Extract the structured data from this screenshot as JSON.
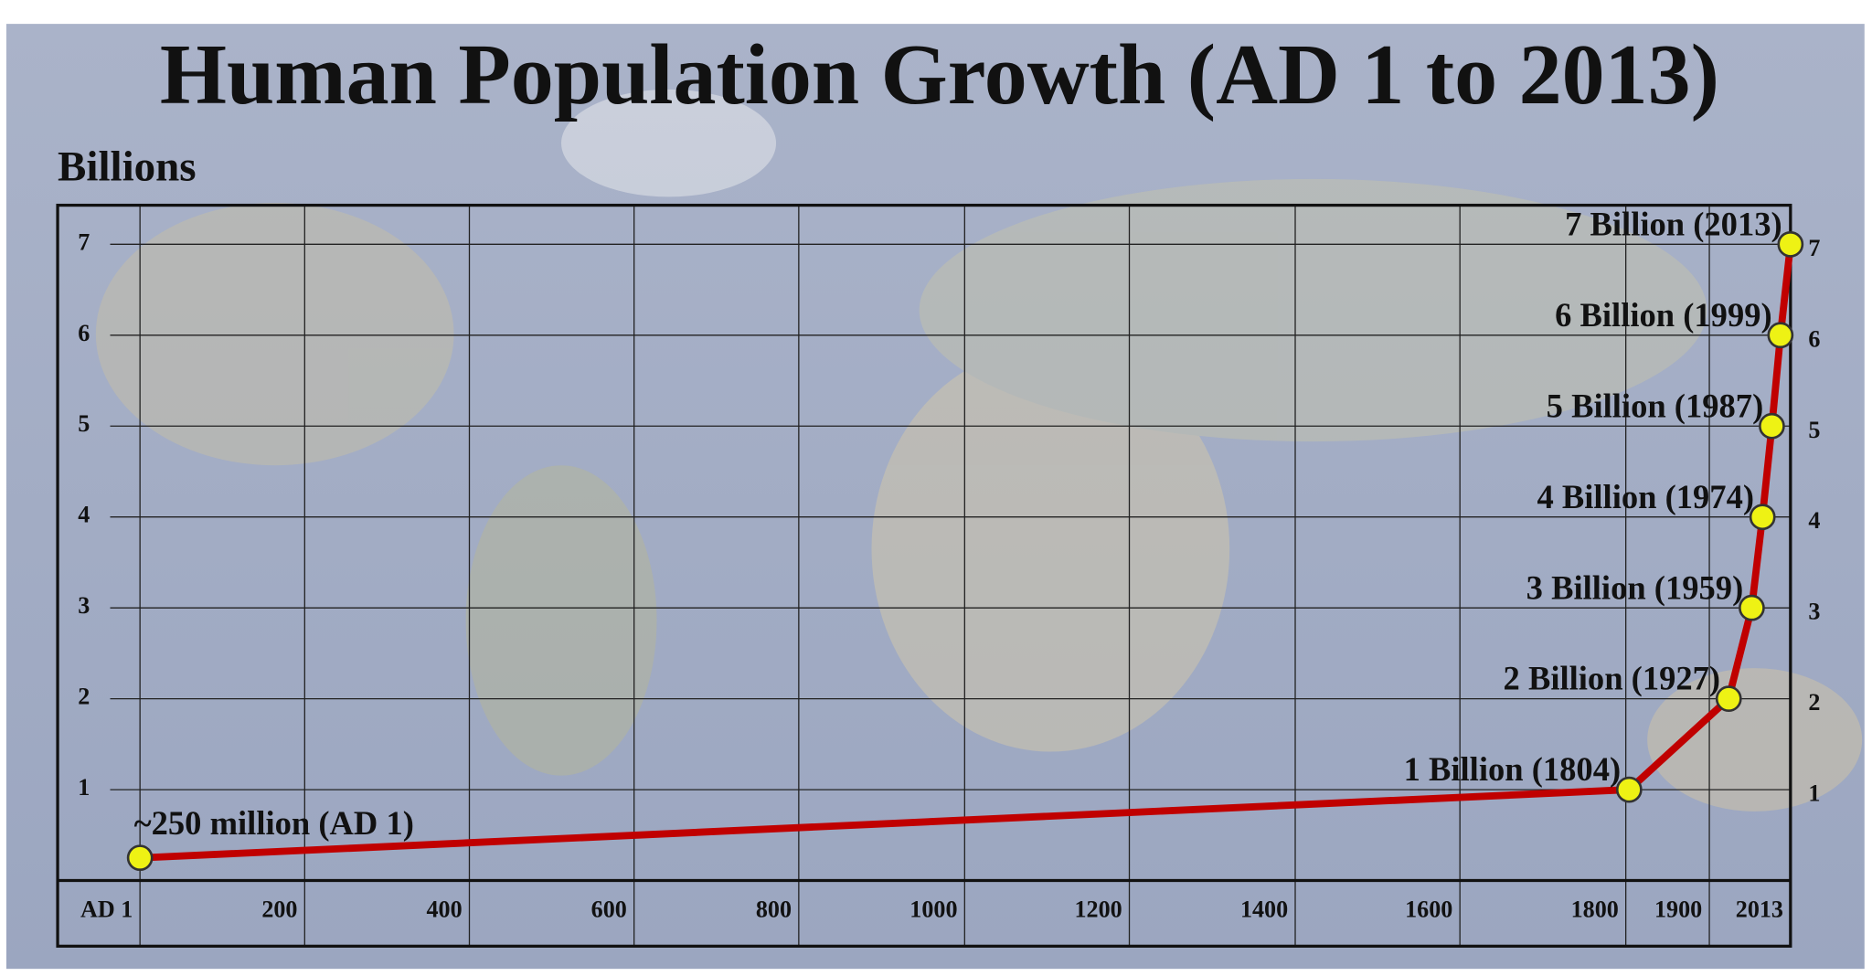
{
  "chart_data": {
    "type": "line",
    "title": "Human Population Growth (AD 1 to 2013)",
    "y_label": "Billions",
    "x": [
      1,
      1804,
      1927,
      1959,
      1974,
      1987,
      1999,
      2013
    ],
    "values": [
      0.25,
      1,
      2,
      3,
      4,
      5,
      6,
      7
    ],
    "value_labels": [
      "~250 million (AD 1)",
      "1 Billion (1804)",
      "2 Billion (1927)",
      "3 Billion (1959)",
      "4 Billion (1974)",
      "5 Billion (1987)",
      "6 Billion (1999)",
      "7 Billion (2013)"
    ],
    "color": "#c00000",
    "marker_color": "#eef214",
    "xticks": [
      {
        "value": 1,
        "label": "AD 1"
      },
      200,
      400,
      600,
      800,
      1000,
      1200,
      1400,
      1600,
      1800,
      1900,
      2013
    ],
    "ylim": [
      0,
      7.43
    ],
    "yticks": [
      1,
      2,
      3,
      4,
      5,
      6,
      7
    ],
    "grid": true
  }
}
